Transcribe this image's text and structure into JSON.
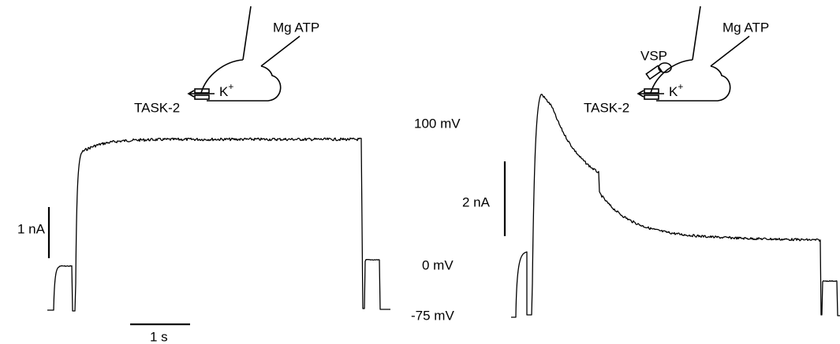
{
  "left_panel": {
    "schematic": {
      "pipette_label": "Mg ATP",
      "ion_label": "K",
      "ion_charge": "+",
      "channel_label": "TASK-2"
    },
    "current_scale": "1 nA",
    "time_scale": "1 s"
  },
  "voltage_labels": [
    "100 mV",
    "0 mV",
    "-75 mV"
  ],
  "right_panel": {
    "schematic": {
      "pipette_label": "Mg ATP",
      "ion_label": "K",
      "ion_charge": "+",
      "channel_label": "TASK-2",
      "enzyme_label": "VSP"
    },
    "current_scale": "2 nA"
  }
}
